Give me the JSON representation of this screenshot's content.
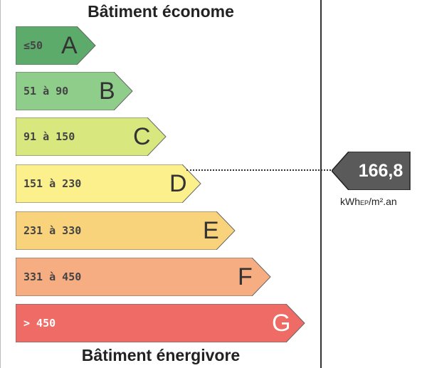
{
  "header": {
    "title": "Bâtiment économe"
  },
  "footer": {
    "title": "Bâtiment énergivore"
  },
  "scale": [
    {
      "range": "≤50",
      "letter": "A",
      "color": "#5cab6a"
    },
    {
      "range": "51 à 90",
      "letter": "B",
      "color": "#8fcd8b"
    },
    {
      "range": "91 à 150",
      "letter": "C",
      "color": "#d8e87f"
    },
    {
      "range": "151 à 230",
      "letter": "D",
      "color": "#fbf08c"
    },
    {
      "range": "231 à 330",
      "letter": "E",
      "color": "#f8d37c"
    },
    {
      "range": "331 à 450",
      "letter": "F",
      "color": "#f6ad82"
    },
    {
      "range": "> 450",
      "letter": "G",
      "color": "#ef6b65"
    }
  ],
  "indicator": {
    "value": "166,8",
    "unit_main": "kWh",
    "unit_sub": "EP",
    "unit_rest": "/m².an",
    "class": "D",
    "color": "#5a5a5a"
  }
}
